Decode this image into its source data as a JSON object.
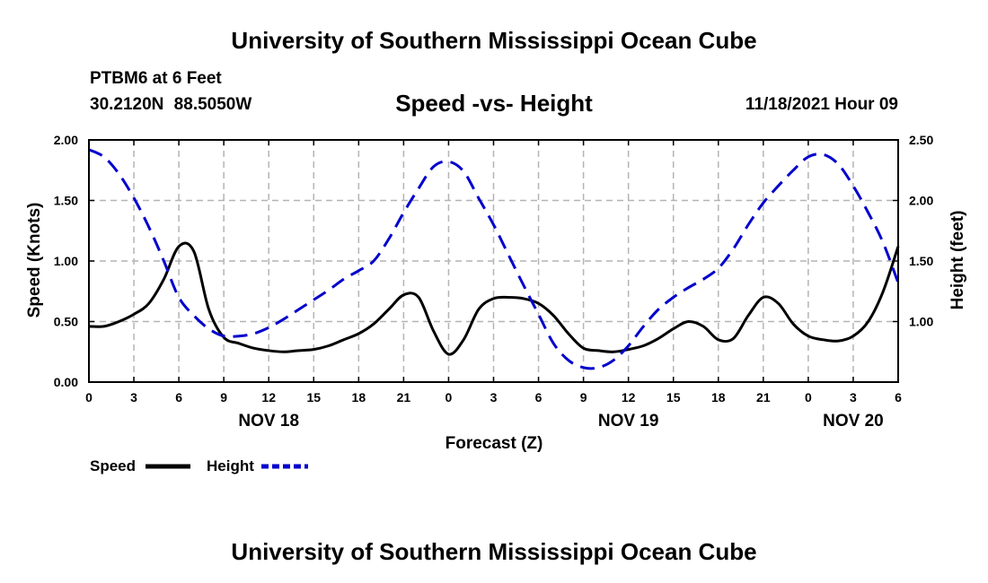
{
  "header": {
    "title": "University of Southern Mississippi Ocean Cube",
    "station": "PTBM6 at 6 Feet",
    "coordinates": "30.2120N  88.5050W",
    "subtitle": "Speed -vs- Height",
    "datetime": "11/18/2021 Hour 09"
  },
  "footer": {
    "title": "University of Southern Mississippi Ocean Cube"
  },
  "chart_data": {
    "type": "line",
    "title": "Speed -vs- Height",
    "xlabel": "Forecast (Z)",
    "ylabel": "Speed (Knots)",
    "y2label": "Height (feet)",
    "grid": true,
    "x_range_hours": [
      0,
      54
    ],
    "x_ticks": [
      {
        "hour": 0,
        "label": "0"
      },
      {
        "hour": 3,
        "label": "3"
      },
      {
        "hour": 6,
        "label": "6"
      },
      {
        "hour": 9,
        "label": "9"
      },
      {
        "hour": 12,
        "label": "12"
      },
      {
        "hour": 15,
        "label": "15"
      },
      {
        "hour": 18,
        "label": "18"
      },
      {
        "hour": 21,
        "label": "21"
      },
      {
        "hour": 24,
        "label": "0"
      },
      {
        "hour": 27,
        "label": "3"
      },
      {
        "hour": 30,
        "label": "6"
      },
      {
        "hour": 33,
        "label": "9"
      },
      {
        "hour": 36,
        "label": "12"
      },
      {
        "hour": 39,
        "label": "15"
      },
      {
        "hour": 42,
        "label": "18"
      },
      {
        "hour": 45,
        "label": "21"
      },
      {
        "hour": 48,
        "label": "0"
      },
      {
        "hour": 51,
        "label": "3"
      },
      {
        "hour": 54,
        "label": "6"
      }
    ],
    "date_labels": [
      {
        "hour": 12,
        "label": "NOV 18"
      },
      {
        "hour": 36,
        "label": "NOV 19"
      },
      {
        "hour": 51,
        "label": "NOV 20"
      }
    ],
    "y_left": {
      "range": [
        0,
        2
      ],
      "ticks": [
        0,
        0.5,
        1,
        1.5,
        2
      ],
      "tick_labels": [
        "0.00",
        "0.50",
        "1.00",
        "1.50",
        "2.00"
      ]
    },
    "y_right": {
      "range": [
        0.5,
        2.5
      ],
      "ticks": [
        1,
        1.5,
        2,
        2.5
      ],
      "tick_labels": [
        "1.00",
        "1.50",
        "2.00",
        "2.50"
      ]
    },
    "series": [
      {
        "name": "Speed",
        "axis": "left",
        "color": "#000000",
        "style": "solid",
        "x": [
          0,
          1,
          2,
          3,
          4,
          5,
          6,
          7,
          8,
          9,
          10,
          11,
          12,
          13,
          14,
          15,
          16,
          17,
          18,
          19,
          20,
          21,
          22,
          23,
          24,
          25,
          26,
          27,
          28,
          29,
          30,
          31,
          32,
          33,
          34,
          35,
          36,
          37,
          38,
          39,
          40,
          41,
          42,
          43,
          44,
          45,
          46,
          47,
          48,
          49,
          50,
          51,
          52,
          53,
          54
        ],
        "values": [
          0.46,
          0.46,
          0.5,
          0.56,
          0.65,
          0.85,
          1.12,
          1.08,
          0.6,
          0.37,
          0.32,
          0.28,
          0.26,
          0.25,
          0.26,
          0.27,
          0.3,
          0.35,
          0.4,
          0.48,
          0.6,
          0.72,
          0.7,
          0.42,
          0.23,
          0.35,
          0.6,
          0.69,
          0.7,
          0.69,
          0.65,
          0.55,
          0.4,
          0.28,
          0.26,
          0.25,
          0.27,
          0.3,
          0.36,
          0.44,
          0.5,
          0.46,
          0.35,
          0.36,
          0.55,
          0.7,
          0.65,
          0.48,
          0.38,
          0.35,
          0.34,
          0.38,
          0.5,
          0.75,
          1.12
        ]
      },
      {
        "name": "Height",
        "axis": "right",
        "color": "#0000cc",
        "style": "dashed",
        "x": [
          0,
          1,
          2,
          3,
          4,
          5,
          6,
          7,
          8,
          9,
          10,
          11,
          12,
          13,
          14,
          15,
          16,
          17,
          18,
          19,
          20,
          21,
          22,
          23,
          24,
          25,
          26,
          27,
          28,
          29,
          30,
          31,
          32,
          33,
          34,
          35,
          36,
          37,
          38,
          39,
          40,
          41,
          42,
          43,
          44,
          45,
          46,
          47,
          48,
          49,
          50,
          51,
          52,
          53,
          54
        ],
        "values": [
          2.42,
          2.36,
          2.22,
          2.02,
          1.78,
          1.5,
          1.2,
          1.05,
          0.94,
          0.88,
          0.88,
          0.9,
          0.95,
          1.02,
          1.1,
          1.18,
          1.26,
          1.35,
          1.42,
          1.5,
          1.68,
          1.9,
          2.1,
          2.28,
          2.32,
          2.24,
          2.02,
          1.8,
          1.55,
          1.3,
          1.06,
          0.82,
          0.68,
          0.62,
          0.62,
          0.68,
          0.8,
          0.96,
          1.1,
          1.2,
          1.28,
          1.35,
          1.44,
          1.6,
          1.8,
          1.98,
          2.12,
          2.25,
          2.36,
          2.38,
          2.3,
          2.12,
          1.9,
          1.65,
          1.32
        ]
      }
    ],
    "legend": {
      "placement": "bottom-left",
      "items": [
        {
          "label": "Speed"
        },
        {
          "label": "Height"
        }
      ]
    }
  }
}
